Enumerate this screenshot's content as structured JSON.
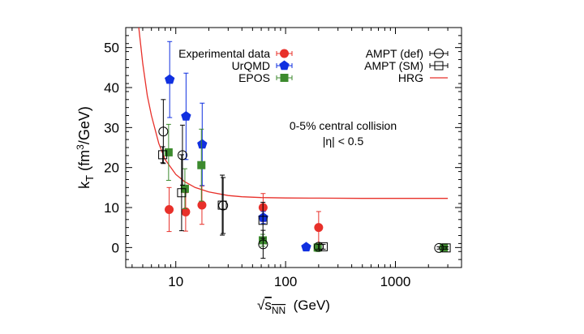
{
  "chart_data": {
    "type": "scatter",
    "x_scale": "log",
    "xlim": [
      3.5,
      4000
    ],
    "ylim": [
      -5,
      55
    ],
    "x_ticks": [
      "10",
      "100",
      "1000"
    ],
    "y_ticks": [
      "0",
      "10",
      "20",
      "30",
      "40",
      "50"
    ],
    "ylabel": {
      "main": "k",
      "sub": "T",
      "units_a": " (fm",
      "sup": "3",
      "units_b": "/GeV)"
    },
    "xlabel": {
      "root": "√",
      "main": "s",
      "sub": "NN",
      "units": "  (GeV)"
    },
    "annotations": [
      "0-5% central collision",
      "|η| < 0.5"
    ],
    "legend_left": [
      "Experimental data",
      "UrQMD",
      "EPOS"
    ],
    "legend_right": [
      "AMPT (def)",
      "AMPT (SM)",
      "HRG"
    ],
    "colors": {
      "experimental": "#e8302a",
      "urqmd": "#1030e0",
      "epos": "#3c8a2e",
      "ampt": "#000000",
      "hrg": "#e8302a"
    },
    "series": [
      {
        "name": "Experimental data",
        "marker": "circle-filled",
        "points": [
          {
            "x": 8.7,
            "y": 9.5,
            "err": 5.5
          },
          {
            "x": 12.3,
            "y": 8.9,
            "err": 4.8
          },
          {
            "x": 17.3,
            "y": 10.6,
            "err": 4.8
          },
          {
            "x": 62.4,
            "y": 10.0,
            "err": 3.5
          },
          {
            "x": 200,
            "y": 5.0,
            "err": 4.0
          }
        ]
      },
      {
        "name": "UrQMD",
        "marker": "pentagon-filled",
        "points": [
          {
            "x": 8.8,
            "y": 42.0,
            "err": 9.5
          },
          {
            "x": 12.4,
            "y": 32.8,
            "err": 10.8
          },
          {
            "x": 17.4,
            "y": 25.8,
            "err": 10.3
          },
          {
            "x": 62.6,
            "y": 7.5,
            "err": 1.5
          },
          {
            "x": 154,
            "y": 0.1,
            "err": 0.4
          }
        ]
      },
      {
        "name": "EPOS",
        "marker": "square-filled",
        "points": [
          {
            "x": 8.6,
            "y": 23.8,
            "err": 7.0
          },
          {
            "x": 12.1,
            "y": 14.7,
            "err": 5.0
          },
          {
            "x": 17.1,
            "y": 20.6,
            "err": 9.0
          },
          {
            "x": 62.0,
            "y": 1.8,
            "err": 1.5
          },
          {
            "x": 196,
            "y": 0.0,
            "err": 1.0
          },
          {
            "x": 2760,
            "y": 0.0,
            "err": 0.3
          }
        ]
      },
      {
        "name": "AMPT (def)",
        "marker": "circle-open",
        "points": [
          {
            "x": 7.7,
            "y": 29.0,
            "err": 8.0
          },
          {
            "x": 11.5,
            "y": 23.1,
            "err": 7.5
          },
          {
            "x": 27,
            "y": 10.5,
            "err": 7.0
          },
          {
            "x": 62.4,
            "y": 0.8,
            "err": 3.5
          },
          {
            "x": 200,
            "y": 0.2,
            "err": 0.6
          },
          {
            "x": 2500,
            "y": -0.1,
            "err": 0.3
          }
        ]
      },
      {
        "name": "AMPT (SM)",
        "marker": "square-open",
        "points": [
          {
            "x": 7.6,
            "y": 23.2,
            "err": 2.0
          },
          {
            "x": 11.3,
            "y": 13.7,
            "err": 9.5
          },
          {
            "x": 26.5,
            "y": 10.6,
            "err": 7.5
          },
          {
            "x": 62.2,
            "y": 6.8,
            "err": 4.5
          },
          {
            "x": 220,
            "y": 0.2,
            "err": 0.6
          },
          {
            "x": 2900,
            "y": -0.1,
            "err": 0.3
          }
        ]
      },
      {
        "name": "HRG",
        "marker": "line",
        "points": [
          {
            "x": 4.6,
            "y": 55.0
          },
          {
            "x": 5.0,
            "y": 46.0
          },
          {
            "x": 5.5,
            "y": 38.0
          },
          {
            "x": 6.0,
            "y": 33.0
          },
          {
            "x": 7.0,
            "y": 26.0
          },
          {
            "x": 8.0,
            "y": 22.0
          },
          {
            "x": 10.0,
            "y": 18.3
          },
          {
            "x": 12.0,
            "y": 16.5
          },
          {
            "x": 15.0,
            "y": 15.0
          },
          {
            "x": 20.0,
            "y": 13.9
          },
          {
            "x": 30.0,
            "y": 13.0
          },
          {
            "x": 40.0,
            "y": 12.7
          },
          {
            "x": 60.0,
            "y": 12.5
          },
          {
            "x": 100.0,
            "y": 12.4
          },
          {
            "x": 200.0,
            "y": 12.35
          },
          {
            "x": 500.0,
            "y": 12.3
          },
          {
            "x": 1000.0,
            "y": 12.3
          },
          {
            "x": 3000.0,
            "y": 12.3
          }
        ]
      }
    ]
  }
}
